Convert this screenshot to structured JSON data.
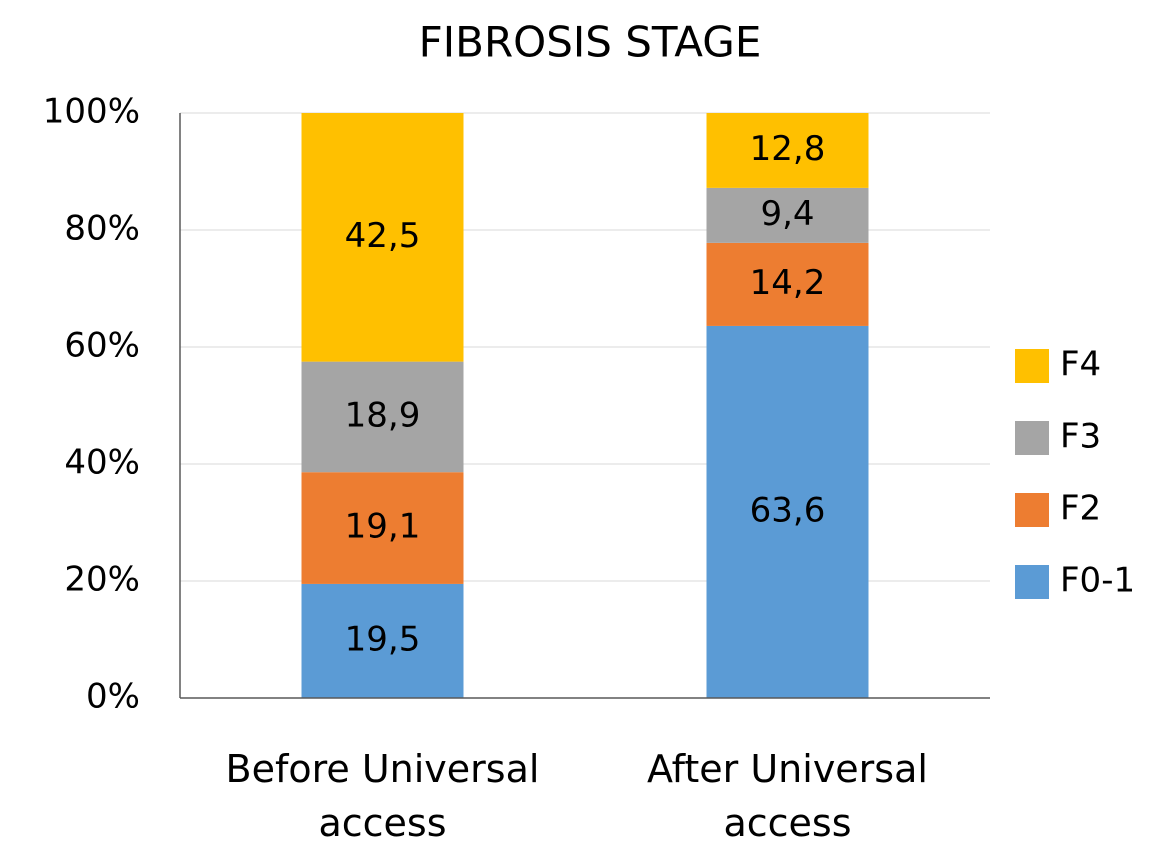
{
  "chart_data": {
    "type": "stacked_bar",
    "title": "FIBROSIS STAGE",
    "categories": [
      "Before Universal access",
      "After Universal access"
    ],
    "series": [
      {
        "name": "F0-1",
        "color": "#5b9bd5",
        "values": [
          19.5,
          63.6
        ],
        "value_labels": [
          "19,5",
          "63,6"
        ]
      },
      {
        "name": "F2",
        "color": "#ed7d31",
        "values": [
          19.1,
          14.2
        ],
        "value_labels": [
          "19,1",
          "14,2"
        ]
      },
      {
        "name": "F3",
        "color": "#a5a5a5",
        "values": [
          18.9,
          9.4
        ],
        "value_labels": [
          "18,9",
          "9,4"
        ]
      },
      {
        "name": "F4",
        "color": "#ffc000",
        "values": [
          42.5,
          12.8
        ],
        "value_labels": [
          "42,5",
          "12,8"
        ]
      }
    ],
    "ylim": [
      0,
      100
    ],
    "yticks": [
      {
        "value": 0,
        "label": "0%"
      },
      {
        "value": 20,
        "label": "20%"
      },
      {
        "value": 40,
        "label": "40%"
      },
      {
        "value": 60,
        "label": "60%"
      },
      {
        "value": 80,
        "label": "80%"
      },
      {
        "value": 100,
        "label": "100%"
      }
    ],
    "grid": true,
    "legend": "right"
  }
}
